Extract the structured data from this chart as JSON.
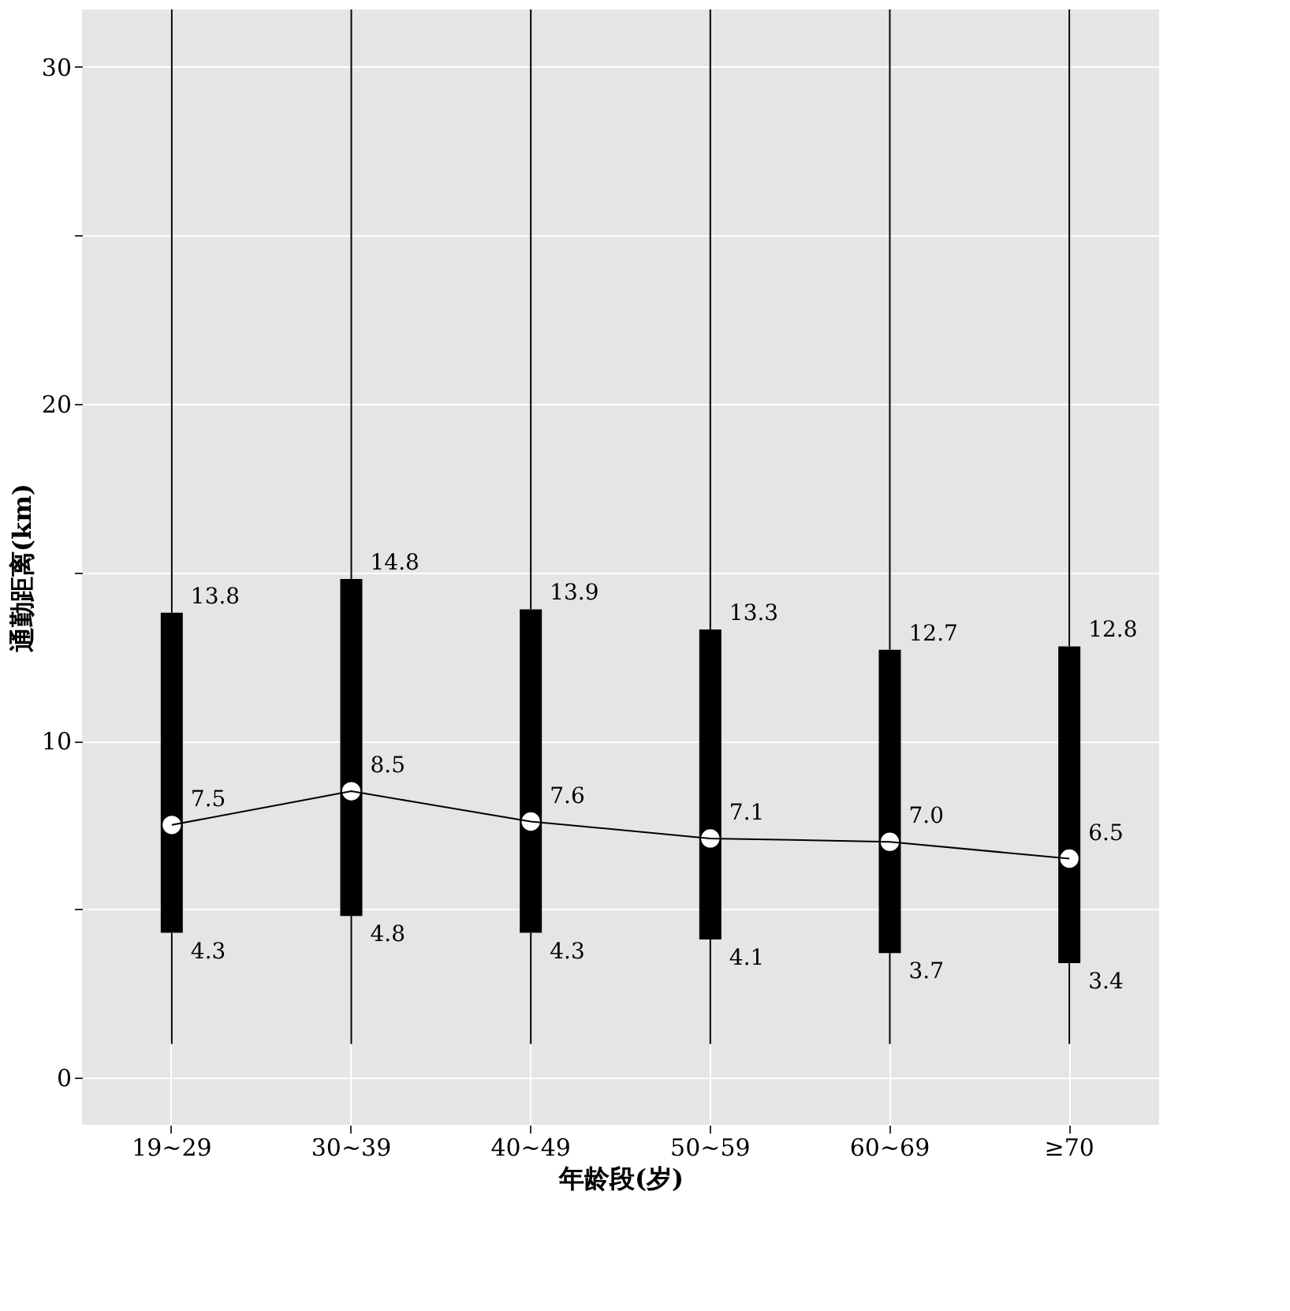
{
  "chart_data": {
    "type": "box",
    "xlabel": "年龄段(岁)",
    "ylabel": "通勤距离(km)",
    "categories": [
      "19~29",
      "30~39",
      "40~49",
      "50~59",
      "60~69",
      "≥70"
    ],
    "ylim": [
      -1.4,
      31.7
    ],
    "yticks": [
      0,
      {
        "value": 5,
        "label": null
      },
      10,
      {
        "value": 15,
        "label": null
      },
      20,
      {
        "value": 25,
        "label": null
      },
      30
    ],
    "grid": true,
    "annotations": [
      {
        "text": "13.8",
        "x": "19~29",
        "y": 13.8
      },
      {
        "text": "14.8",
        "x": "30~39",
        "y": 14.8
      },
      {
        "text": "13.9",
        "x": "40~49",
        "y": 13.9
      },
      {
        "text": "13.3",
        "x": "50~59",
        "y": 13.3
      },
      {
        "text": "12.7",
        "x": "60~69",
        "y": 12.7
      },
      {
        "text": "12.8",
        "x": "≥70",
        "y": 12.8
      },
      {
        "text": "4.3",
        "x": "19~29",
        "y": 4.3
      },
      {
        "text": "4.8",
        "x": "30~39",
        "y": 4.8
      },
      {
        "text": "4.3",
        "x": "40~49",
        "y": 4.3
      },
      {
        "text": "4.1",
        "x": "50~59",
        "y": 4.1
      },
      {
        "text": "3.7",
        "x": "60~69",
        "y": 3.7
      },
      {
        "text": "3.4",
        "x": "≥70",
        "y": 3.4
      }
    ],
    "series": [
      {
        "color": "#000000",
        "boxes": [
          {
            "low": 1,
            "q1": 4.3,
            "median": 7.5,
            "q3": 13.8,
            "high": 31.7
          },
          {
            "low": 1,
            "q1": 4.8,
            "median": 8.5,
            "q3": 14.8,
            "high": 31.7
          },
          {
            "low": 1,
            "q1": 4.3,
            "median": 7.6,
            "q3": 13.9,
            "high": 31.7
          },
          {
            "low": 1,
            "q1": 4.1,
            "median": 7.1,
            "q3": 13.3,
            "high": 31.7
          },
          {
            "low": 1,
            "q1": 3.7,
            "median": 7.0,
            "q3": 12.7,
            "high": 31.7
          },
          {
            "low": 1,
            "q1": 3.4,
            "median": 6.5,
            "q3": 12.8,
            "high": 31.7
          }
        ]
      },
      {
        "type": "line",
        "color": "#000000",
        "values": [
          7.5,
          8.5,
          7.6,
          7.1,
          7.0,
          6.5
        ],
        "value_labels": [
          "7.5",
          "8.5",
          "7.6",
          "7.1",
          "7.0",
          "6.5"
        ]
      }
    ]
  }
}
